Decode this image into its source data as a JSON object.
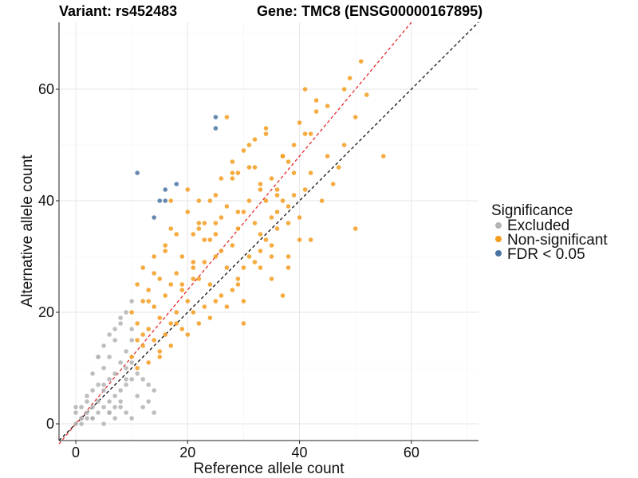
{
  "chart_data": {
    "type": "scatter",
    "title_left": "Variant: rs452483",
    "title_right": "Gene: TMC8 (ENSG00000167895)",
    "xlabel": "Reference allele count",
    "ylabel": "Alternative allele count",
    "xlim": [
      -3,
      72
    ],
    "ylim": [
      -3,
      72
    ],
    "xticks": [
      0,
      20,
      40,
      60
    ],
    "yticks": [
      0,
      20,
      40,
      60
    ],
    "grid": true,
    "reference_lines": [
      {
        "name": "identity",
        "slope": 1.0,
        "intercept": 0,
        "color": "#000000",
        "dash": "dashed"
      },
      {
        "name": "fitted",
        "slope": 1.2,
        "intercept": 0,
        "color": "#e41a1c",
        "dash": "dashed"
      }
    ],
    "legend": {
      "title": "Significance",
      "position": "right",
      "entries": [
        {
          "label": "Excluded",
          "color": "#b3b3b3"
        },
        {
          "label": "Non-significant",
          "color": "#f39c1f"
        },
        {
          "label": "FDR < 0.05",
          "color": "#4a74a3"
        }
      ]
    },
    "series": [
      {
        "name": "Excluded",
        "color": "#b3b3b3",
        "x": [
          0,
          0,
          1,
          1,
          1,
          2,
          2,
          2,
          3,
          3,
          3,
          3,
          4,
          4,
          4,
          4,
          5,
          5,
          5,
          5,
          6,
          6,
          6,
          6,
          7,
          7,
          7,
          7,
          8,
          8,
          8,
          8,
          9,
          9,
          9,
          9,
          10,
          10,
          10,
          10,
          3,
          5,
          6,
          8,
          9,
          10,
          11,
          12,
          13,
          14,
          4,
          6,
          7,
          9,
          2,
          1,
          0,
          8,
          10,
          12,
          14,
          5,
          7,
          11,
          13
        ],
        "y": [
          0,
          2,
          1,
          3,
          0,
          2,
          5,
          1,
          3,
          6,
          1,
          9,
          2,
          4,
          7,
          12,
          3,
          6,
          10,
          14,
          4,
          8,
          12,
          2,
          5,
          9,
          15,
          1,
          6,
          11,
          18,
          3,
          7,
          13,
          20,
          2,
          8,
          1,
          15,
          22,
          1,
          0,
          2,
          4,
          10,
          17,
          5,
          3,
          7,
          6,
          12,
          16,
          3,
          8,
          4,
          1,
          3,
          19,
          11,
          8,
          2,
          7,
          17,
          9,
          4
        ]
      },
      {
        "name": "Non-significant",
        "color": "#f39c1f",
        "x": [
          10,
          10,
          11,
          11,
          11,
          12,
          12,
          12,
          13,
          13,
          13,
          14,
          14,
          14,
          15,
          15,
          15,
          16,
          16,
          16,
          17,
          17,
          17,
          18,
          18,
          18,
          19,
          19,
          19,
          20,
          20,
          20,
          21,
          21,
          21,
          22,
          22,
          22,
          23,
          23,
          23,
          24,
          24,
          24,
          25,
          25,
          25,
          26,
          26,
          26,
          27,
          27,
          27,
          28,
          28,
          28,
          29,
          29,
          29,
          30,
          30,
          30,
          31,
          31,
          31,
          32,
          32,
          32,
          33,
          33,
          33,
          34,
          34,
          34,
          35,
          35,
          35,
          36,
          36,
          36,
          37,
          37,
          37,
          38,
          38,
          38,
          39,
          39,
          40,
          40,
          41,
          41,
          42,
          42,
          43,
          44,
          45,
          46,
          47,
          48,
          49,
          50,
          51,
          52,
          55,
          12,
          14,
          16,
          18,
          20,
          22,
          24,
          26,
          28,
          30,
          32,
          34,
          36,
          38,
          40,
          15,
          19,
          23,
          27,
          31,
          35,
          39,
          43,
          17,
          21,
          25,
          29,
          33,
          37,
          41,
          45,
          11,
          13,
          17,
          21,
          25,
          29,
          33,
          38,
          42,
          48,
          50,
          30,
          35,
          22,
          28
        ],
        "y": [
          12,
          20,
          10,
          18,
          25,
          14,
          22,
          28,
          11,
          17,
          24,
          15,
          21,
          30,
          13,
          19,
          26,
          16,
          23,
          32,
          14,
          25,
          35,
          18,
          27,
          20,
          17,
          24,
          30,
          16,
          22,
          38,
          20,
          28,
          34,
          18,
          26,
          40,
          21,
          29,
          36,
          19,
          33,
          25,
          22,
          30,
          41,
          23,
          31,
          37,
          21,
          28,
          55,
          24,
          32,
          44,
          26,
          35,
          45,
          28,
          38,
          22,
          30,
          40,
          50,
          29,
          36,
          46,
          31,
          42,
          34,
          33,
          40,
          52,
          32,
          44,
          30,
          35,
          42,
          38,
          23,
          40,
          48,
          36,
          47,
          28,
          50,
          41,
          37,
          54,
          42,
          60,
          45,
          52,
          58,
          40,
          48,
          43,
          46,
          60,
          62,
          55,
          65,
          59,
          48,
          16,
          27,
          31,
          34,
          42,
          35,
          40,
          44,
          47,
          49,
          51,
          53,
          41,
          39,
          33,
          12,
          25,
          33,
          39,
          46,
          37,
          45,
          56,
          18,
          29,
          36,
          38,
          43,
          48,
          52,
          57,
          15,
          22,
          40,
          26,
          34,
          25,
          28,
          30,
          33,
          50,
          35,
          18,
          26,
          36,
          45
        ]
      },
      {
        "name": "FDR < 0.05",
        "color": "#4a74a3",
        "x": [
          11,
          14,
          15,
          16,
          16,
          18,
          25,
          25
        ],
        "y": [
          45,
          37,
          40,
          40,
          42,
          43,
          53,
          55
        ]
      }
    ]
  }
}
